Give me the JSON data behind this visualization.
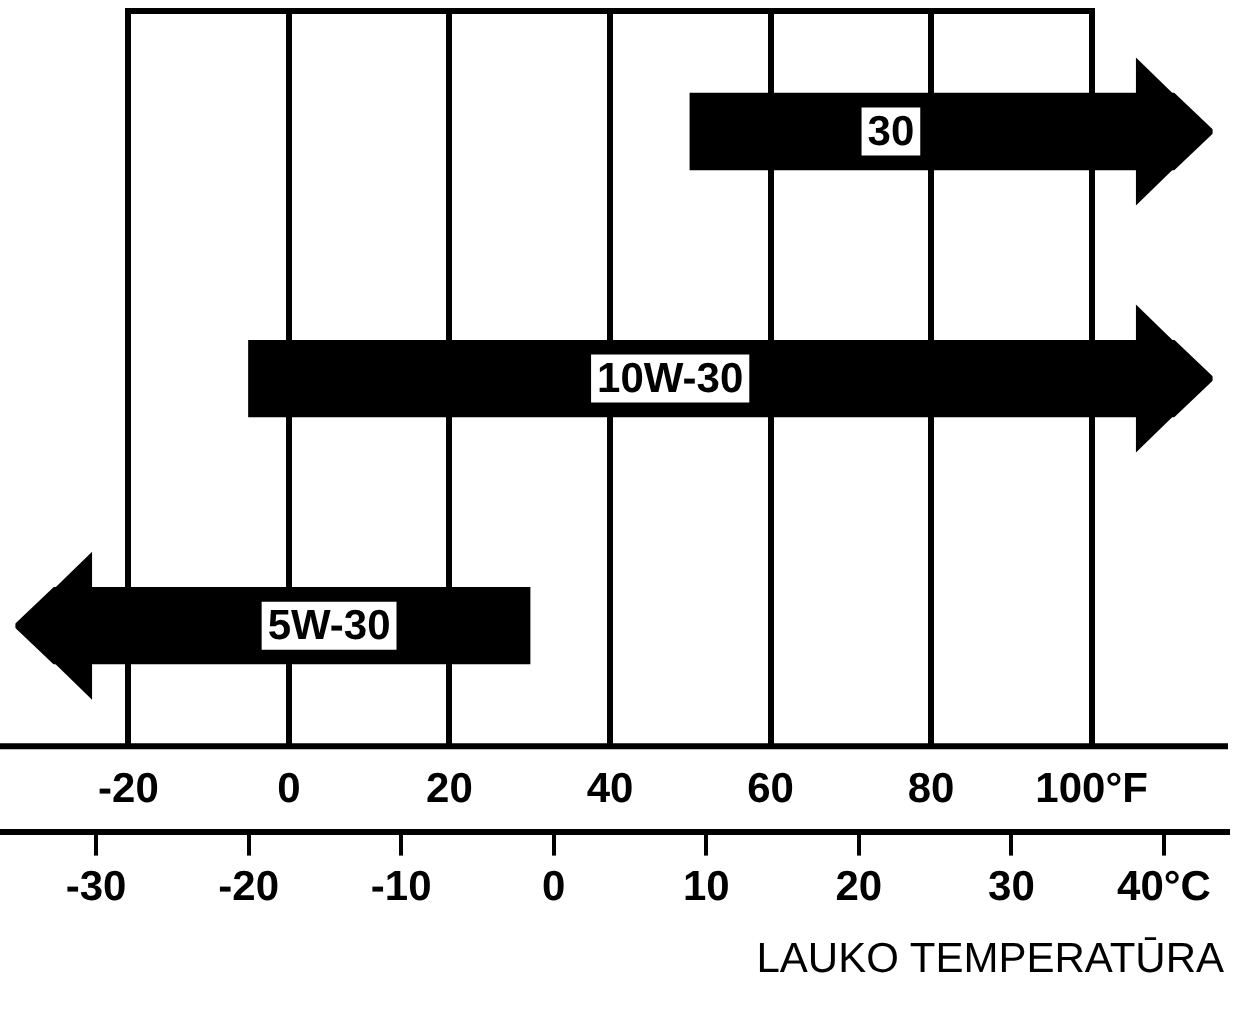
{
  "chart_data": {
    "type": "bar",
    "orientation": "horizontal",
    "categories": [
      "30",
      "10W-30",
      "5W-30"
    ],
    "base": [
      50,
      -5,
      -34
    ],
    "values": [
      65,
      120,
      64
    ],
    "color": "#000000",
    "xlim": [
      -36,
      117
    ],
    "xticks": [
      -20,
      0,
      20,
      40,
      60,
      80,
      {
        "value": 100,
        "label": "100°F"
      }
    ],
    "x2lim": [
      -36.3,
      44.2
    ],
    "x2ticks": [
      -30,
      -20,
      -10,
      0,
      10,
      20,
      30,
      {
        "value": 40,
        "label": "40°C"
      }
    ],
    "grid": "x",
    "legend": false,
    "annotations": [
      "LAUKO TEMPERATŪRA"
    ]
  }
}
